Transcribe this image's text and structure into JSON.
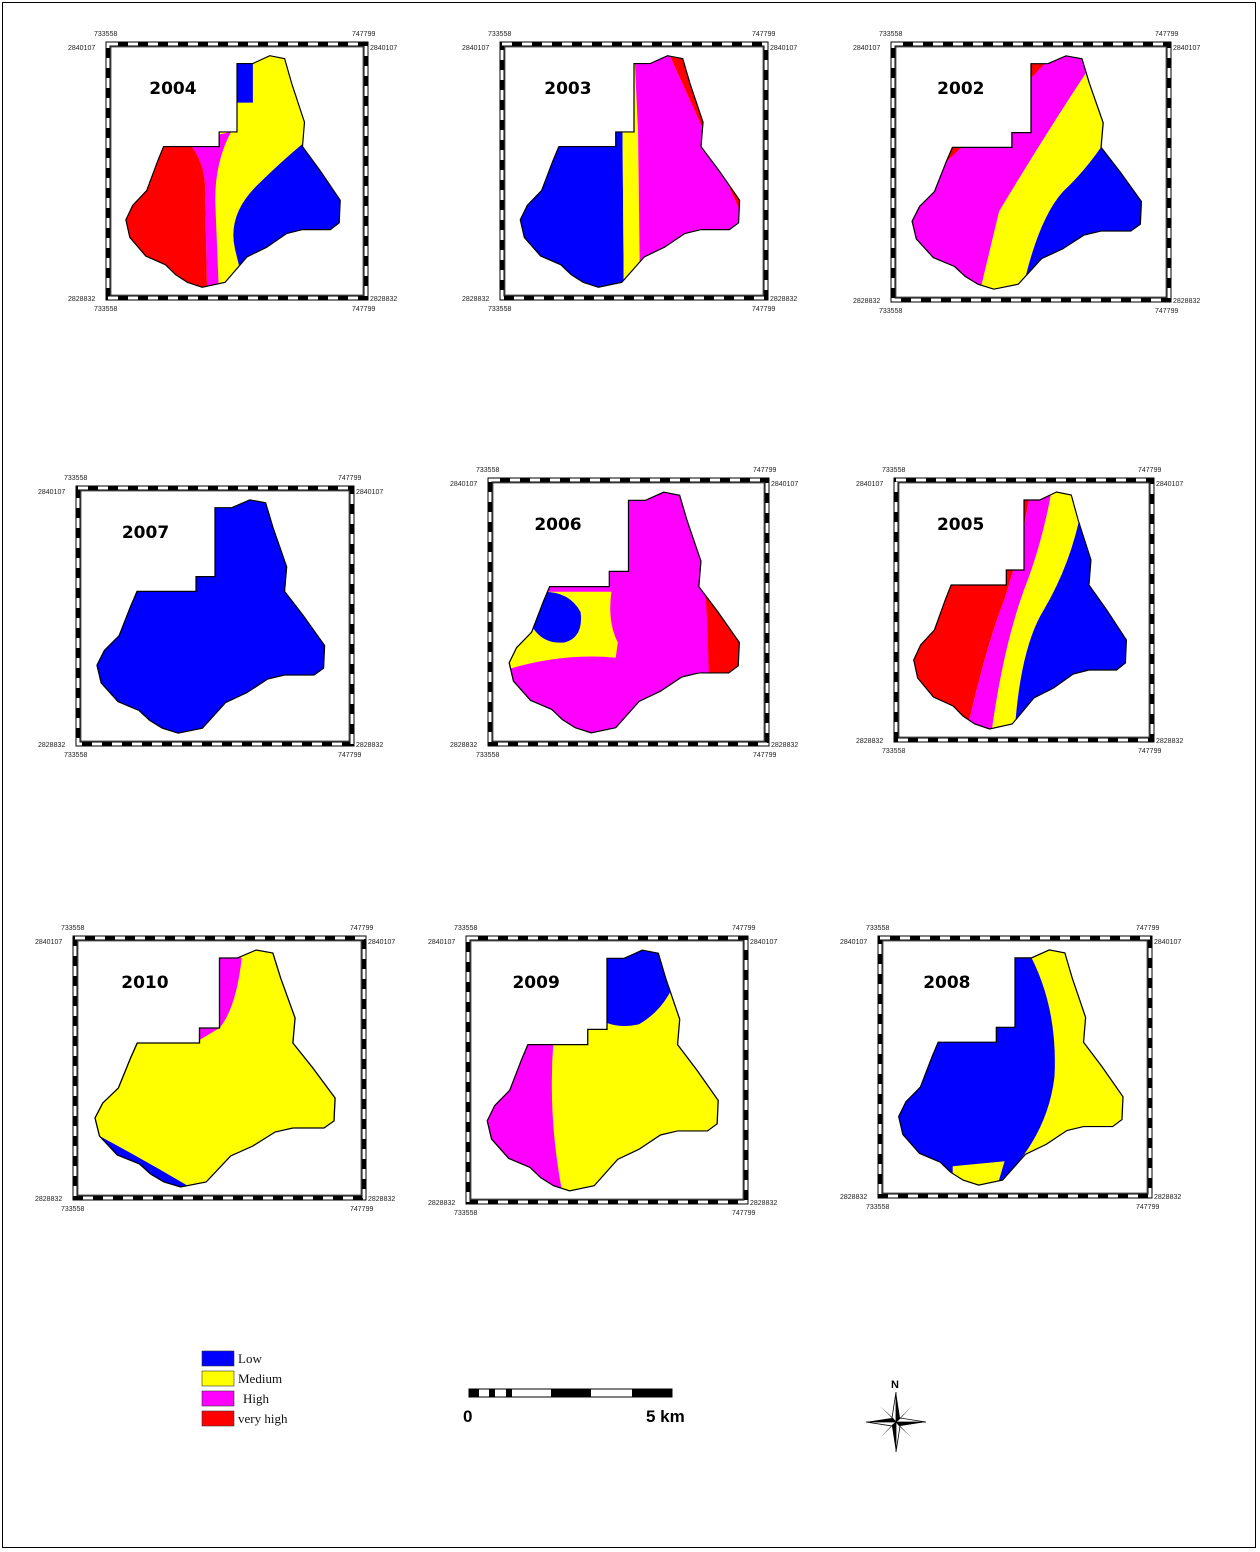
{
  "colors": {
    "low": "#0000ff",
    "medium": "#ffff00",
    "high": "#ff00ff",
    "very_high": "#ff0000"
  },
  "coords": {
    "x_min": "733558",
    "x_max": "747799",
    "y_min": "2828832",
    "y_max": "2840107"
  },
  "maps": [
    {
      "year": "2004"
    },
    {
      "year": "2003"
    },
    {
      "year": "2002"
    },
    {
      "year": "2007"
    },
    {
      "year": "2006"
    },
    {
      "year": "2005"
    },
    {
      "year": "2010"
    },
    {
      "year": "2009"
    },
    {
      "year": "2008"
    }
  ],
  "legend": {
    "items": [
      {
        "label": "Low",
        "color": "#0000ff"
      },
      {
        "label": "Medium",
        "color": "#ffff00"
      },
      {
        "label": "High",
        "color": "#ff00ff"
      },
      {
        "label": "very high",
        "color": "#ff0000"
      }
    ]
  },
  "scale_bar": {
    "start_label": "0",
    "end_label": "5 km"
  },
  "north_arrow": {
    "label": "N"
  }
}
